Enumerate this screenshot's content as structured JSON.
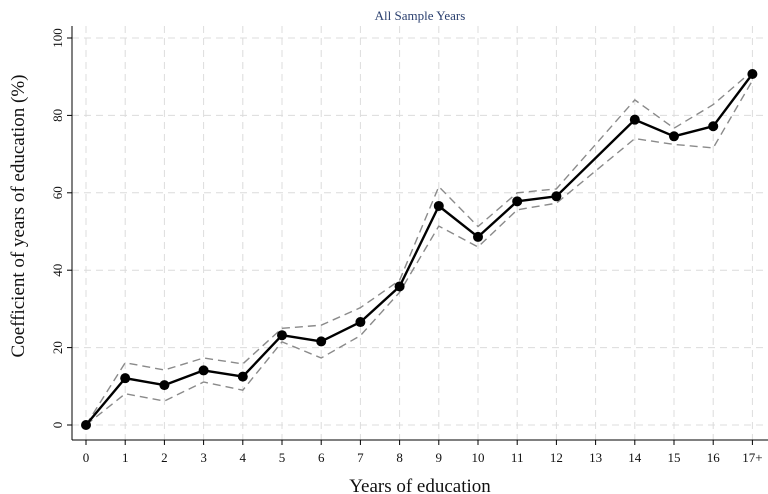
{
  "chart_data": {
    "type": "line",
    "title": "All Sample Years",
    "xlabel": "Years of education",
    "ylabel": "Coefficient of years of education (%)",
    "categories": [
      "0",
      "1",
      "2",
      "3",
      "4",
      "5",
      "6",
      "7",
      "8",
      "9",
      "10",
      "11",
      "12",
      "13",
      "14",
      "15",
      "16",
      "17+"
    ],
    "ylim": [
      0,
      100
    ],
    "yticks": [
      0,
      20,
      40,
      60,
      80,
      100
    ],
    "grid": true,
    "series": [
      {
        "role": "estimate",
        "x": [
          0,
          1,
          2,
          3,
          4,
          5,
          6,
          7,
          8,
          9,
          10,
          11,
          12,
          14,
          15,
          16,
          17
        ],
        "values": [
          0,
          12.1,
          10.3,
          14.1,
          12.5,
          23.2,
          21.6,
          26.6,
          35.8,
          56.6,
          48.6,
          57.8,
          59.1,
          78.9,
          74.6,
          77.2,
          90.7
        ],
        "color": "#000000"
      },
      {
        "role": "upper-ci",
        "x": [
          0,
          1,
          2,
          3,
          4,
          5,
          6,
          7,
          8,
          9,
          10,
          11,
          12,
          14,
          15,
          16,
          17
        ],
        "values": [
          0,
          16.1,
          14.2,
          17.3,
          15.8,
          25.0,
          25.8,
          30.3,
          37.4,
          61.6,
          51.3,
          60.0,
          61.0,
          84.0,
          76.7,
          82.8,
          91.5
        ],
        "color": "#8a8a8a"
      },
      {
        "role": "lower-ci",
        "x": [
          0,
          1,
          2,
          3,
          4,
          5,
          6,
          7,
          8,
          9,
          10,
          11,
          12,
          14,
          15,
          16,
          17
        ],
        "values": [
          0,
          8.1,
          6.2,
          11.1,
          9.0,
          21.5,
          17.3,
          23.1,
          34.3,
          51.4,
          46.0,
          55.6,
          57.3,
          74.0,
          72.5,
          71.6,
          89.0
        ],
        "color": "#8a8a8a"
      }
    ]
  }
}
